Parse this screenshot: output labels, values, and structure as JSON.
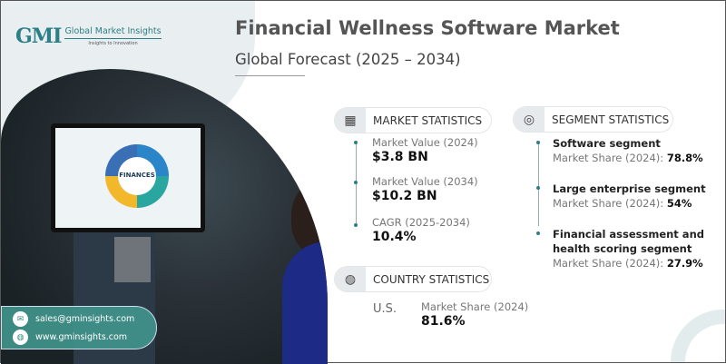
{
  "brand": {
    "logo_mark": "GMI",
    "name": "Global Market Insights",
    "tagline": "Insights to Innovation"
  },
  "header": {
    "title": "Financial Wellness Software Market",
    "subtitle": "Global Forecast (2025 – 2034)"
  },
  "image": {
    "screen_text": "FINANCES"
  },
  "market_statistics": {
    "label": "MARKET STATISTICS",
    "icon": "chart-globe-icon",
    "items": [
      {
        "label": "Market Value (2024)",
        "value": "$3.8 BN"
      },
      {
        "label": "Market Value (2034)",
        "value": "$10.2 BN"
      },
      {
        "label": "CAGR (2025-2034)",
        "value": "10.4%"
      }
    ]
  },
  "segment_statistics": {
    "label": "SEGMENT STATISTICS",
    "icon": "target-chart-icon",
    "items": [
      {
        "name": "Software segment",
        "share_label": "Market Share (2024):",
        "share": "78.8%"
      },
      {
        "name": "Large enterprise segment",
        "share_label": "Market Share (2024):",
        "share": "54%"
      },
      {
        "name_line1": "Financial assessment and",
        "name_line2": "health scoring segment",
        "share_label": "Market Share (2024):",
        "share": "27.9%"
      }
    ]
  },
  "country_statistics": {
    "label": "COUNTRY STATISTICS",
    "icon": "globe-icon",
    "country": "U.S.",
    "share_label": "Market Share (2024)",
    "share": "81.6%"
  },
  "contact": {
    "email": "sales@gminsights.com",
    "website": "www.gminsights.com"
  },
  "colors": {
    "accent": "#2c7f86",
    "contact_bg": "#40968c"
  }
}
